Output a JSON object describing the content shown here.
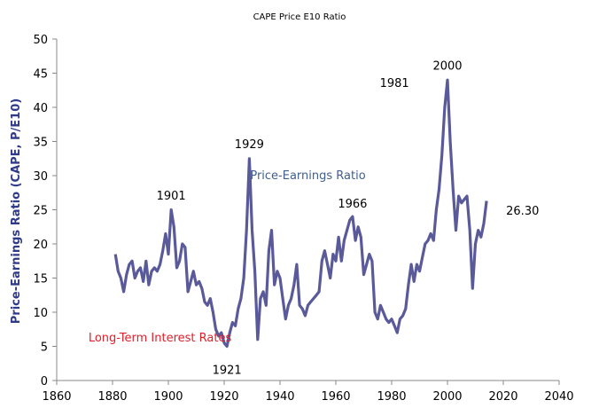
{
  "chart_data": {
    "type": "line",
    "title": "CAPE Price E10 Ratio",
    "xlabel": "",
    "ylabel": "Price-Earnings Ratio (CAPE, P/E10)",
    "xlim": [
      1860,
      2040
    ],
    "ylim": [
      0,
      50
    ],
    "xticks": [
      1860,
      1880,
      1900,
      1920,
      1940,
      1960,
      1980,
      2000,
      2020,
      2040
    ],
    "yticks": [
      0,
      5,
      10,
      15,
      20,
      25,
      30,
      35,
      40,
      45,
      50
    ],
    "grid": false,
    "series_color": "#5a5a9a",
    "series": [
      {
        "name": "Price-Earnings Ratio",
        "x": [
          1881,
          1882,
          1883,
          1884,
          1885,
          1886,
          1887,
          1888,
          1889,
          1890,
          1891,
          1892,
          1893,
          1894,
          1895,
          1896,
          1897,
          1898,
          1899,
          1900,
          1901,
          1902,
          1903,
          1904,
          1905,
          1906,
          1907,
          1908,
          1909,
          1910,
          1911,
          1912,
          1913,
          1914,
          1915,
          1916,
          1917,
          1918,
          1919,
          1920,
          1921,
          1922,
          1923,
          1924,
          1925,
          1926,
          1927,
          1928,
          1929,
          1930,
          1931,
          1932,
          1933,
          1934,
          1935,
          1936,
          1937,
          1938,
          1939,
          1940,
          1941,
          1942,
          1943,
          1944,
          1945,
          1946,
          1947,
          1948,
          1949,
          1950,
          1951,
          1952,
          1953,
          1954,
          1955,
          1956,
          1957,
          1958,
          1959,
          1960,
          1961,
          1962,
          1963,
          1964,
          1965,
          1966,
          1967,
          1968,
          1969,
          1970,
          1971,
          1972,
          1973,
          1974,
          1975,
          1976,
          1977,
          1978,
          1979,
          1980,
          1981,
          1982,
          1983,
          1984,
          1985,
          1986,
          1987,
          1988,
          1989,
          1990,
          1991,
          1992,
          1993,
          1994,
          1995,
          1996,
          1997,
          1998,
          1999,
          2000,
          2001,
          2002,
          2003,
          2004,
          2005,
          2006,
          2007,
          2008,
          2009,
          2010,
          2011,
          2012,
          2013,
          2014
        ],
        "y": [
          18.5,
          16,
          15,
          13,
          15.5,
          17,
          17.5,
          15,
          16,
          16.5,
          14.5,
          17.5,
          14,
          16,
          16.5,
          16,
          17,
          19,
          21.5,
          18.5,
          25,
          22.5,
          16.5,
          17.5,
          20,
          19.5,
          13,
          14.5,
          16,
          14,
          14.5,
          13.5,
          11.5,
          11,
          12,
          10,
          7.5,
          6.5,
          7,
          5.5,
          5,
          7,
          8.5,
          8,
          10.5,
          12,
          15,
          22,
          32.5,
          22,
          16,
          6,
          12,
          13,
          11,
          19,
          22,
          14,
          16,
          15,
          12,
          9,
          11,
          12,
          14,
          17,
          11,
          10.5,
          9.5,
          11,
          11.5,
          12,
          12.5,
          13,
          17.5,
          19,
          17,
          15,
          18.5,
          17.5,
          21,
          17.5,
          20.5,
          22,
          23.5,
          24,
          20.5,
          22.5,
          21,
          15.5,
          17,
          18.5,
          17.5,
          10,
          9,
          11,
          10,
          9,
          8.5,
          9,
          8,
          7,
          9,
          9.5,
          10.5,
          14,
          17,
          14.5,
          17,
          16,
          18,
          20,
          20.5,
          21.5,
          20.5,
          25,
          28,
          33,
          40,
          44,
          35,
          28,
          22,
          27,
          26,
          26.5,
          27,
          22,
          13.5,
          20,
          22,
          21,
          23,
          26.3
        ]
      }
    ],
    "annotations": [
      {
        "text": "1901",
        "x": 1901,
        "y": 26.5
      },
      {
        "text": "1929",
        "x": 1929,
        "y": 34
      },
      {
        "text": "1921",
        "x": 1921,
        "y": 1
      },
      {
        "text": "1966",
        "x": 1966,
        "y": 25.3
      },
      {
        "text": "1981",
        "x": 1981,
        "y": 43
      },
      {
        "text": "2000",
        "x": 2000,
        "y": 45.5
      },
      {
        "text": "26.30",
        "x": 2021,
        "y": 24.3
      },
      {
        "text": "Price-Earnings Ratio",
        "x": 1950,
        "y": 29.5,
        "color": "#3f5f8f"
      },
      {
        "text": "Long-Term Interest Rates",
        "x": 1897,
        "y": 5.7,
        "color": "#e0202a"
      }
    ]
  }
}
